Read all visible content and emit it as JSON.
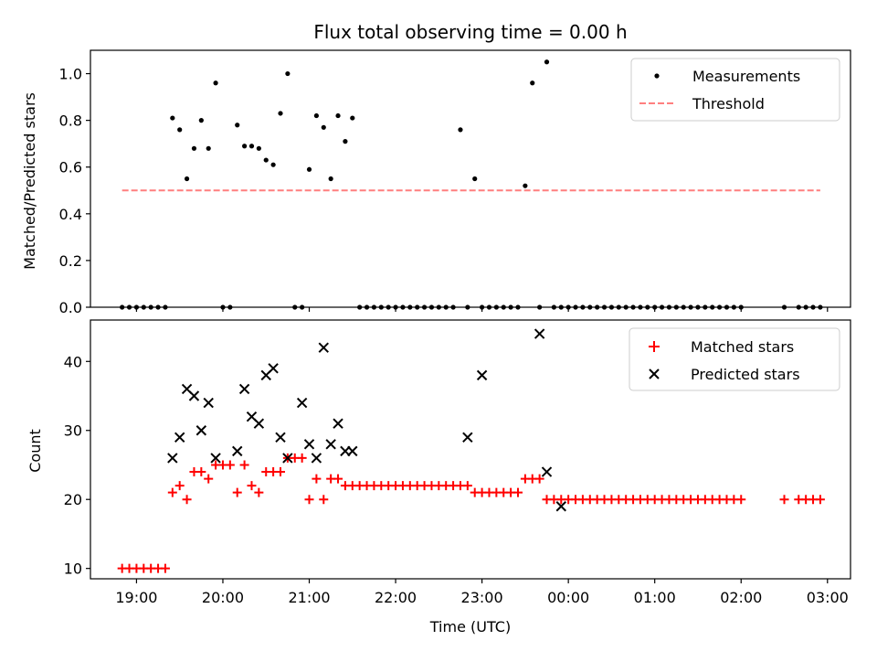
{
  "chart_data": [
    {
      "type": "scatter",
      "title": "Flux total observing time = 0.00 h",
      "xlabel": "",
      "ylabel": "Matched/Predicted stars",
      "ylim": [
        0,
        1.1
      ],
      "yticks": [
        "0.0",
        "0.2",
        "0.4",
        "0.6",
        "0.8",
        "1.0"
      ],
      "legend_position": "top-right",
      "colors": {
        "measurements": "#000000",
        "threshold": "#ff7f7f"
      },
      "threshold": {
        "name": "Threshold",
        "value": 0.5,
        "x_start": "18:50",
        "x_end": "02:55"
      },
      "series": [
        {
          "name": "Measurements",
          "x": [
            "18:50",
            "18:55",
            "19:00",
            "19:05",
            "19:10",
            "19:15",
            "19:20",
            "19:25",
            "19:30",
            "19:35",
            "19:40",
            "19:45",
            "19:50",
            "19:55",
            "20:00",
            "20:05",
            "20:10",
            "20:15",
            "20:20",
            "20:25",
            "20:30",
            "20:35",
            "20:40",
            "20:45",
            "20:50",
            "20:55",
            "21:00",
            "21:05",
            "21:10",
            "21:15",
            "21:20",
            "21:25",
            "21:30",
            "21:35",
            "21:40",
            "21:45",
            "21:50",
            "21:55",
            "22:00",
            "22:05",
            "22:10",
            "22:15",
            "22:20",
            "22:25",
            "22:30",
            "22:35",
            "22:40",
            "22:45",
            "22:50",
            "22:55",
            "23:00",
            "23:05",
            "23:10",
            "23:15",
            "23:20",
            "23:25",
            "23:30",
            "23:35",
            "23:40",
            "23:45",
            "23:50",
            "23:55",
            "00:00",
            "00:05",
            "00:10",
            "00:15",
            "00:20",
            "00:25",
            "00:30",
            "00:35",
            "00:40",
            "00:45",
            "00:50",
            "00:55",
            "01:00",
            "01:05",
            "01:10",
            "01:15",
            "01:20",
            "01:25",
            "01:30",
            "01:35",
            "01:40",
            "01:45",
            "01:50",
            "01:55",
            "02:00",
            "02:30",
            "02:40",
            "02:45",
            "02:50",
            "02:55"
          ],
          "y": [
            0,
            0,
            0,
            0,
            0,
            0,
            0,
            0.81,
            0.76,
            0.55,
            0.68,
            0.8,
            0.68,
            0.96,
            0,
            0,
            0.78,
            0.69,
            0.69,
            0.68,
            0.63,
            0.61,
            0.83,
            1.0,
            0,
            0,
            0.59,
            0.82,
            0.77,
            0.55,
            0.82,
            0.71,
            0.81,
            0,
            0,
            0,
            0,
            0,
            0,
            0,
            0,
            0,
            0,
            0,
            0,
            0,
            0,
            0.76,
            0,
            0.55,
            0,
            0,
            0,
            0,
            0,
            0,
            0.52,
            0.96,
            0,
            1.05,
            0,
            0,
            0,
            0,
            0,
            0,
            0,
            0,
            0,
            0,
            0,
            0,
            0,
            0,
            0,
            0,
            0,
            0,
            0,
            0,
            0,
            0,
            0,
            0,
            0,
            0,
            0,
            0,
            0,
            0,
            0,
            0
          ]
        }
      ]
    },
    {
      "type": "scatter",
      "title": "",
      "xlabel": "Time (UTC)",
      "ylabel": "Count",
      "ylim": [
        8.5,
        46
      ],
      "yticks": [
        "10",
        "20",
        "30",
        "40"
      ],
      "xlim": [
        "18:28",
        "03:16"
      ],
      "xticks": [
        "19:00",
        "20:00",
        "21:00",
        "22:00",
        "23:00",
        "00:00",
        "01:00",
        "02:00",
        "03:00"
      ],
      "legend_position": "top-right",
      "colors": {
        "matched": "#ff0000",
        "predicted": "#000000"
      },
      "series": [
        {
          "name": "Matched stars",
          "x": [
            "18:50",
            "18:55",
            "19:00",
            "19:05",
            "19:10",
            "19:15",
            "19:20",
            "19:25",
            "19:30",
            "19:35",
            "19:40",
            "19:45",
            "19:50",
            "19:55",
            "20:00",
            "20:05",
            "20:10",
            "20:15",
            "20:20",
            "20:25",
            "20:30",
            "20:35",
            "20:40",
            "20:45",
            "20:50",
            "20:55",
            "21:00",
            "21:05",
            "21:10",
            "21:15",
            "21:20",
            "21:25",
            "21:30",
            "21:35",
            "21:40",
            "21:45",
            "21:50",
            "21:55",
            "22:00",
            "22:05",
            "22:10",
            "22:15",
            "22:20",
            "22:25",
            "22:30",
            "22:35",
            "22:40",
            "22:45",
            "22:50",
            "22:55",
            "23:00",
            "23:05",
            "23:10",
            "23:15",
            "23:20",
            "23:25",
            "23:30",
            "23:35",
            "23:40",
            "23:45",
            "23:50",
            "23:55",
            "00:00",
            "00:05",
            "00:10",
            "00:15",
            "00:20",
            "00:25",
            "00:30",
            "00:35",
            "00:40",
            "00:45",
            "00:50",
            "00:55",
            "01:00",
            "01:05",
            "01:10",
            "01:15",
            "01:20",
            "01:25",
            "01:30",
            "01:35",
            "01:40",
            "01:45",
            "01:50",
            "01:55",
            "02:00",
            "02:30",
            "02:40",
            "02:45",
            "02:50",
            "02:55"
          ],
          "y": [
            10,
            10,
            10,
            10,
            10,
            10,
            10,
            21,
            22,
            20,
            24,
            24,
            23,
            25,
            25,
            25,
            21,
            25,
            22,
            21,
            24,
            24,
            24,
            26,
            26,
            26,
            20,
            23,
            20,
            23,
            23,
            22,
            22,
            22,
            22,
            22,
            22,
            22,
            22,
            22,
            22,
            22,
            22,
            22,
            22,
            22,
            22,
            22,
            22,
            21,
            21,
            21,
            21,
            21,
            21,
            21,
            23,
            23,
            23,
            20,
            20,
            20,
            20,
            20,
            20,
            20,
            20,
            20,
            20,
            20,
            20,
            20,
            20,
            20,
            20,
            20,
            20,
            20,
            20,
            20,
            20,
            20,
            20,
            20,
            20,
            20,
            20,
            20,
            20,
            20,
            20,
            20
          ]
        },
        {
          "name": "Predicted stars",
          "x": [
            "19:25",
            "19:30",
            "19:35",
            "19:40",
            "19:45",
            "19:50",
            "19:55",
            "20:10",
            "20:15",
            "20:20",
            "20:25",
            "20:30",
            "20:35",
            "20:40",
            "20:45",
            "20:55",
            "21:00",
            "21:05",
            "21:10",
            "21:15",
            "21:20",
            "21:25",
            "21:30",
            "22:50",
            "23:00",
            "23:40",
            "23:45",
            "23:55"
          ],
          "y": [
            26,
            29,
            36,
            35,
            30,
            34,
            26,
            27,
            36,
            32,
            31,
            38,
            39,
            29,
            26,
            34,
            28,
            26,
            42,
            28,
            31,
            27,
            27,
            29,
            38,
            44,
            24,
            19
          ]
        }
      ]
    }
  ]
}
